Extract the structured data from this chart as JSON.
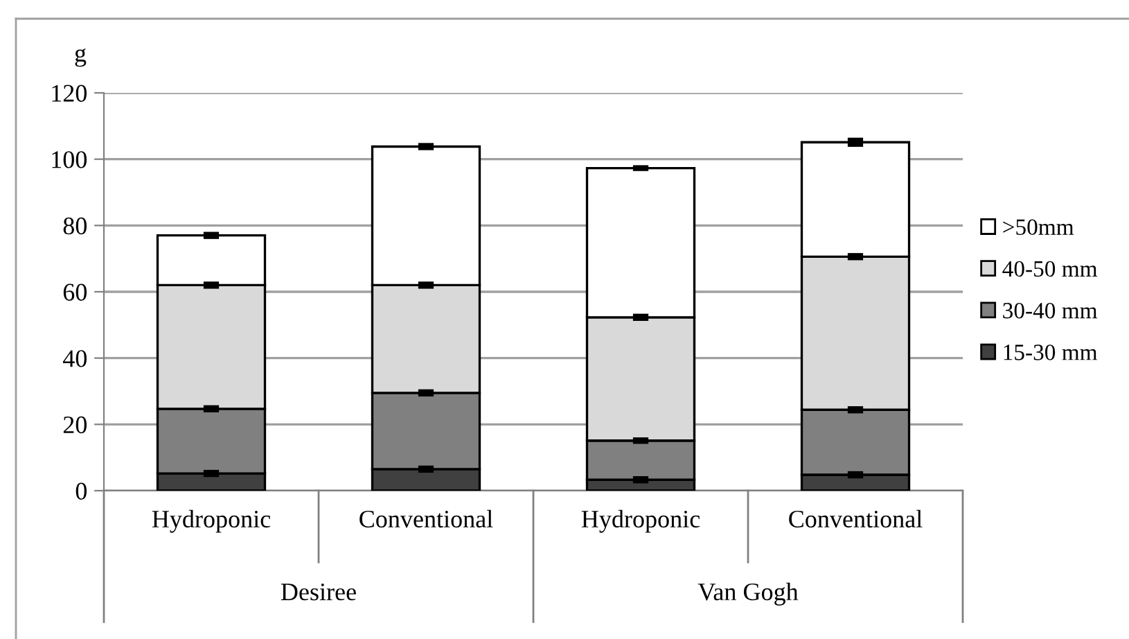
{
  "chart_data": {
    "type": "bar",
    "stacked": true,
    "ylabel": "g",
    "categories": [
      "Hydroponic",
      "Conventional",
      "Hydroponic",
      "Conventional"
    ],
    "annotations": [
      "Desiree",
      "Van Gogh"
    ],
    "series": [
      {
        "name": "15-30 mm",
        "color": "#404040",
        "values": [
          5.2,
          6.5,
          3.3,
          4.8
        ],
        "errors": [
          0.5,
          0.5,
          0.5,
          0.5
        ]
      },
      {
        "name": "30-40 mm",
        "color": "#808080",
        "values": [
          19.5,
          23.0,
          11.8,
          19.6
        ],
        "errors": [
          0.5,
          0.5,
          0.4,
          0.5
        ]
      },
      {
        "name": "40-50 mm",
        "color": "#d9d9d9",
        "values": [
          37.3,
          32.5,
          37.2,
          46.2
        ],
        "errors": [
          0.5,
          0.5,
          0.5,
          0.5
        ]
      },
      {
        "name": ">50mm",
        "color": "#ffffff",
        "values": [
          15.0,
          41.8,
          45.0,
          34.5
        ],
        "errors": [
          0.5,
          0.5,
          0.3,
          0.8
        ]
      }
    ],
    "ylim": [
      0,
      120
    ],
    "yticks": [
      0,
      20,
      40,
      60,
      80,
      100,
      120
    ],
    "grid": "y",
    "legend": "right"
  }
}
